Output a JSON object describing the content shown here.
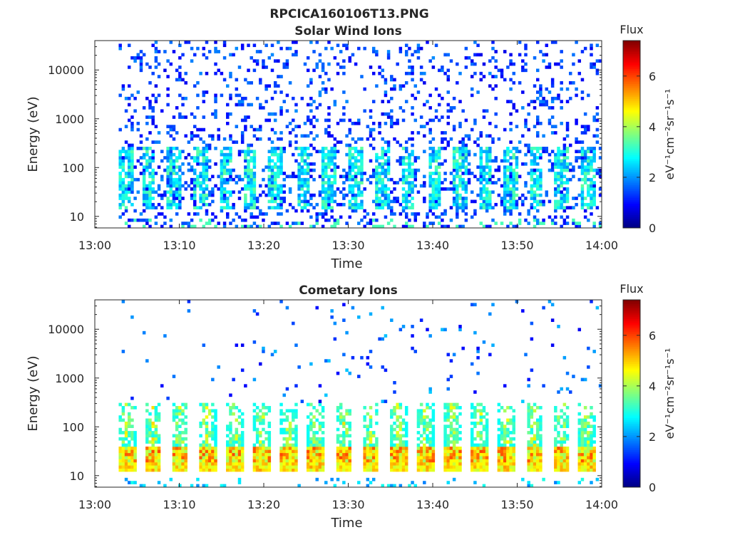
{
  "figure_title": "RPCICA160106T13.PNG",
  "chart_data": [
    {
      "type": "heatmap",
      "title": "Solar Wind Ions",
      "xlabel": "Time",
      "ylabel": "Energy (eV)",
      "x_range": [
        "13:00",
        "14:00"
      ],
      "x_ticks": [
        "13:00",
        "13:10",
        "13:20",
        "13:30",
        "13:40",
        "13:50",
        "14:00"
      ],
      "y_scale": "log",
      "y_range": [
        5.8,
        40000
      ],
      "y_ticks": [
        "10",
        "100",
        "1000",
        "10000"
      ],
      "y_tick_values": [
        10,
        100,
        1000,
        10000
      ],
      "data_start": "13:03",
      "data_end": "14:00",
      "colorbar": {
        "title": "Flux",
        "label": "eV⁻¹cm⁻²sr⁻¹s⁻¹",
        "range": [
          0,
          7.4
        ],
        "ticks": [
          "0",
          "2",
          "4",
          "6"
        ],
        "colormap": "jet"
      },
      "pattern": "sparse",
      "periodic_bursts_minutes": [
        3.7,
        6.4,
        9.4,
        12.6,
        15.6,
        18.4,
        21.4,
        24.7,
        27.7,
        30.9,
        34.0,
        37.1,
        40.2,
        43.2,
        46.2,
        49.2,
        52.2,
        55.3,
        58.5
      ],
      "background_flux_level": 1.5,
      "burst_peak_flux_level": 3.5
    },
    {
      "type": "heatmap",
      "title": "Cometary Ions",
      "xlabel": "Time",
      "ylabel": "Energy (eV)",
      "x_range": [
        "13:00",
        "14:00"
      ],
      "x_ticks": [
        "13:00",
        "13:10",
        "13:20",
        "13:30",
        "13:40",
        "13:50",
        "14:00"
      ],
      "y_scale": "log",
      "y_range": [
        5.8,
        40000
      ],
      "y_ticks": [
        "10",
        "100",
        "1000",
        "10000"
      ],
      "y_tick_values": [
        10,
        100,
        1000,
        10000
      ],
      "data_start": "13:03",
      "data_end": "14:00",
      "colorbar": {
        "title": "Flux",
        "label": "eV⁻¹cm⁻²sr⁻¹s⁻¹",
        "range": [
          0,
          7.4
        ],
        "ticks": [
          "0",
          "2",
          "4",
          "6"
        ],
        "colormap": "jet"
      },
      "pattern": "bursts",
      "periodic_bursts_minutes": [
        3.8,
        6.9,
        10.1,
        13.3,
        16.6,
        19.8,
        23.0,
        26.2,
        29.5,
        32.7,
        35.9,
        39.1,
        42.3,
        45.6,
        48.8,
        52.0,
        55.2,
        58.2
      ],
      "burst_core_energy_ev": [
        18,
        40
      ],
      "burst_core_flux_level": 6.0,
      "burst_top_energy_ev": 300,
      "burst_edge_flux_level": 2.8
    }
  ]
}
